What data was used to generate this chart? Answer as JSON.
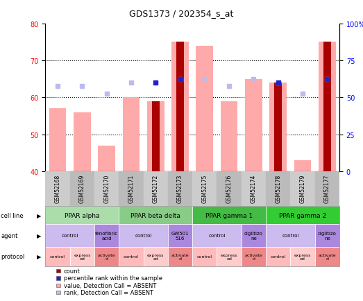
{
  "title": "GDS1373 / 202354_s_at",
  "samples": [
    "GSM52168",
    "GSM52169",
    "GSM52170",
    "GSM52171",
    "GSM52172",
    "GSM52173",
    "GSM52175",
    "GSM52176",
    "GSM52174",
    "GSM52178",
    "GSM52179",
    "GSM52177"
  ],
  "value_bars": [
    57,
    56,
    47,
    60,
    59,
    75,
    74,
    59,
    65,
    64,
    43,
    75
  ],
  "rank_bars": [
    63,
    63,
    61,
    64,
    64,
    65,
    65,
    63,
    65,
    64,
    61,
    65
  ],
  "count_bars": [
    null,
    null,
    null,
    null,
    59,
    75,
    null,
    null,
    null,
    64,
    null,
    75
  ],
  "count_rank_bars": [
    null,
    null,
    null,
    null,
    64,
    65,
    null,
    null,
    null,
    64,
    null,
    65
  ],
  "ylim_left": [
    40,
    80
  ],
  "ylim_right": [
    0,
    100
  ],
  "yticks_left": [
    40,
    50,
    60,
    70,
    80
  ],
  "yticks_right": [
    0,
    25,
    50,
    75,
    100
  ],
  "ytick_labels_right": [
    "0",
    "25",
    "50",
    "75",
    "100%"
  ],
  "color_value_bar": "#ffaaaa",
  "color_rank_bar": "#bbbbee",
  "color_count_bar": "#aa0000",
  "color_count_rank_bar": "#2222cc",
  "cell_lines": [
    {
      "label": "PPAR alpha",
      "start": 0,
      "end": 3,
      "color": "#aaddaa"
    },
    {
      "label": "PPAR beta delta",
      "start": 3,
      "end": 6,
      "color": "#88cc88"
    },
    {
      "label": "PPAR gamma 1",
      "start": 6,
      "end": 9,
      "color": "#44bb44"
    },
    {
      "label": "PPAR gamma 2",
      "start": 9,
      "end": 12,
      "color": "#33cc33"
    }
  ],
  "agents": [
    {
      "label": "control",
      "start": 0,
      "end": 2,
      "color": "#ccbbee"
    },
    {
      "label": "fenofibric\nacid",
      "start": 2,
      "end": 3,
      "color": "#aa88dd"
    },
    {
      "label": "control",
      "start": 3,
      "end": 5,
      "color": "#ccbbee"
    },
    {
      "label": "GW501\n516",
      "start": 5,
      "end": 6,
      "color": "#aa88dd"
    },
    {
      "label": "control",
      "start": 6,
      "end": 8,
      "color": "#ccbbee"
    },
    {
      "label": "ciglitizo\nne",
      "start": 8,
      "end": 9,
      "color": "#aa88dd"
    },
    {
      "label": "control",
      "start": 9,
      "end": 11,
      "color": "#ccbbee"
    },
    {
      "label": "ciglitizo\nne",
      "start": 11,
      "end": 12,
      "color": "#aa88dd"
    }
  ],
  "protocols": [
    {
      "label": "control",
      "start": 0,
      "end": 1,
      "color": "#ffbbbb"
    },
    {
      "label": "express\ned",
      "start": 1,
      "end": 2,
      "color": "#ffcccc"
    },
    {
      "label": "activate\nd",
      "start": 2,
      "end": 3,
      "color": "#ee8888"
    },
    {
      "label": "control",
      "start": 3,
      "end": 4,
      "color": "#ffbbbb"
    },
    {
      "label": "express\ned",
      "start": 4,
      "end": 5,
      "color": "#ffcccc"
    },
    {
      "label": "activate\nd",
      "start": 5,
      "end": 6,
      "color": "#ee8888"
    },
    {
      "label": "control",
      "start": 6,
      "end": 7,
      "color": "#ffbbbb"
    },
    {
      "label": "express\ned",
      "start": 7,
      "end": 8,
      "color": "#ffcccc"
    },
    {
      "label": "activate\nd",
      "start": 8,
      "end": 9,
      "color": "#ee8888"
    },
    {
      "label": "control",
      "start": 9,
      "end": 10,
      "color": "#ffbbbb"
    },
    {
      "label": "express\ned",
      "start": 10,
      "end": 11,
      "color": "#ffcccc"
    },
    {
      "label": "activate\nd",
      "start": 11,
      "end": 12,
      "color": "#ee8888"
    }
  ],
  "row_labels": [
    "cell line",
    "agent",
    "protocol"
  ],
  "legend_items": [
    {
      "label": "count",
      "color": "#aa0000"
    },
    {
      "label": "percentile rank within the sample",
      "color": "#2222cc"
    },
    {
      "label": "value, Detection Call = ABSENT",
      "color": "#ffaaaa"
    },
    {
      "label": "rank, Detection Call = ABSENT",
      "color": "#bbbbee"
    }
  ],
  "bar_width": 0.7,
  "grid_dotted_yticks": [
    50,
    60,
    70
  ],
  "xticklabel_bg": "#cccccc"
}
